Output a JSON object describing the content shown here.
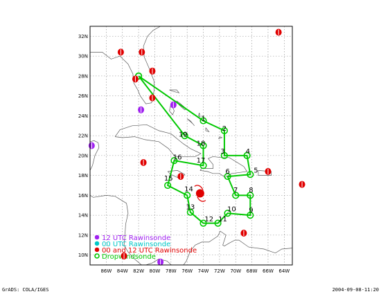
{
  "map": {
    "lat_ticks": [
      "32N",
      "30N",
      "28N",
      "26N",
      "24N",
      "22N",
      "20N",
      "18N",
      "16N",
      "14N",
      "12N",
      "10N"
    ],
    "lon_ticks": [
      "86W",
      "84W",
      "82W",
      "80W",
      "78W",
      "76W",
      "74W",
      "72W",
      "70W",
      "68W",
      "66W",
      "64W"
    ]
  },
  "legend": [
    {
      "label": "12 UTC Rawinsonde",
      "color": "#a020f0"
    },
    {
      "label": "00 UTC Rawinsonde",
      "color": "#00c8c8"
    },
    {
      "label": "00 and 12 UTC Rawinsonde",
      "color": "#e00000"
    },
    {
      "label": "Dropwindsonde",
      "color": "#00c800"
    }
  ],
  "flight_track": {
    "waypoints": [
      {
        "label": "1",
        "lon": -74.0,
        "lat": 23.5
      },
      {
        "label": "2",
        "lon": -71.4,
        "lat": 22.5
      },
      {
        "label": "3",
        "lon": -71.6,
        "lat": 20.2
      },
      {
        "label": "4",
        "lon": -68.5,
        "lat": 20.2
      },
      {
        "label": "5",
        "lon": -67.5,
        "lat": 18.3
      },
      {
        "label": "6",
        "lon": -71.0,
        "lat": 18.2
      },
      {
        "label": "7",
        "lon": -70.0,
        "lat": 16.3
      },
      {
        "label": "8",
        "lon": -68.1,
        "lat": 16.3
      },
      {
        "label": "9",
        "lon": -68.1,
        "lat": 14.3
      },
      {
        "label": "10",
        "lon": -70.5,
        "lat": 14.4
      },
      {
        "label": "11",
        "lon": -71.6,
        "lat": 13.4
      },
      {
        "label": "12",
        "lon": -73.3,
        "lat": 13.4
      },
      {
        "label": "13",
        "lon": -75.6,
        "lat": 14.6
      },
      {
        "label": "14",
        "lon": -75.8,
        "lat": 16.4
      },
      {
        "label": "15",
        "lon": -78.3,
        "lat": 17.5
      },
      {
        "label": "16",
        "lon": -77.2,
        "lat": 19.6
      },
      {
        "label": "17",
        "lon": -74.3,
        "lat": 19.3
      },
      {
        "label": "18",
        "lon": -74.3,
        "lat": 21.0
      },
      {
        "label": "19",
        "lon": -76.5,
        "lat": 21.9
      }
    ],
    "path_points": [
      {
        "lon": -82.0,
        "lat": 28.0
      },
      {
        "lon": -74.0,
        "lat": 23.5
      },
      {
        "lon": -71.4,
        "lat": 22.5
      },
      {
        "lon": -71.4,
        "lat": 20.0
      },
      {
        "lon": -68.6,
        "lat": 20.0
      },
      {
        "lon": -68.2,
        "lat": 18.1
      },
      {
        "lon": -71.0,
        "lat": 17.9
      },
      {
        "lon": -70.0,
        "lat": 16.0
      },
      {
        "lon": -68.2,
        "lat": 16.0
      },
      {
        "lon": -68.2,
        "lat": 14.0
      },
      {
        "lon": -71.0,
        "lat": 14.2
      },
      {
        "lon": -72.2,
        "lat": 13.2
      },
      {
        "lon": -74.0,
        "lat": 13.2
      },
      {
        "lon": -75.6,
        "lat": 14.3
      },
      {
        "lon": -76.0,
        "lat": 16.0
      },
      {
        "lon": -78.4,
        "lat": 17.0
      },
      {
        "lon": -77.6,
        "lat": 19.5
      },
      {
        "lon": -74.0,
        "lat": 19.0
      },
      {
        "lon": -74.0,
        "lat": 21.0
      },
      {
        "lon": -76.3,
        "lat": 22.0
      },
      {
        "lon": -82.0,
        "lat": 28.0
      }
    ]
  },
  "stations": [
    {
      "type": "12",
      "lon": -81.7,
      "lat": 24.6
    },
    {
      "type": "12",
      "lon": -77.7,
      "lat": 25.1
    },
    {
      "type": "12",
      "lon": -87.8,
      "lat": 21.0
    },
    {
      "type": "12",
      "lon": -79.3,
      "lat": 9.3
    },
    {
      "type": "both",
      "lon": -84.2,
      "lat": 30.4
    },
    {
      "type": "both",
      "lon": -81.6,
      "lat": 30.4
    },
    {
      "type": "both",
      "lon": -80.3,
      "lat": 28.5
    },
    {
      "type": "both",
      "lon": -82.4,
      "lat": 27.7
    },
    {
      "type": "both",
      "lon": -80.3,
      "lat": 25.8
    },
    {
      "type": "both",
      "lon": -64.7,
      "lat": 32.4
    },
    {
      "type": "both",
      "lon": -81.4,
      "lat": 19.3
    },
    {
      "type": "both",
      "lon": -76.8,
      "lat": 17.9
    },
    {
      "type": "both",
      "lon": -66.0,
      "lat": 18.4
    },
    {
      "type": "both",
      "lon": -61.8,
      "lat": 17.1
    },
    {
      "type": "both",
      "lon": -69.0,
      "lat": 12.2
    },
    {
      "type": "both",
      "lon": -83.8,
      "lat": 9.9
    }
  ],
  "hurricane": {
    "lon": -74.4,
    "lat": 16.2
  },
  "footer": {
    "left": "GrADS: COLA/IGES",
    "right": "2004-09-08-11:20"
  }
}
